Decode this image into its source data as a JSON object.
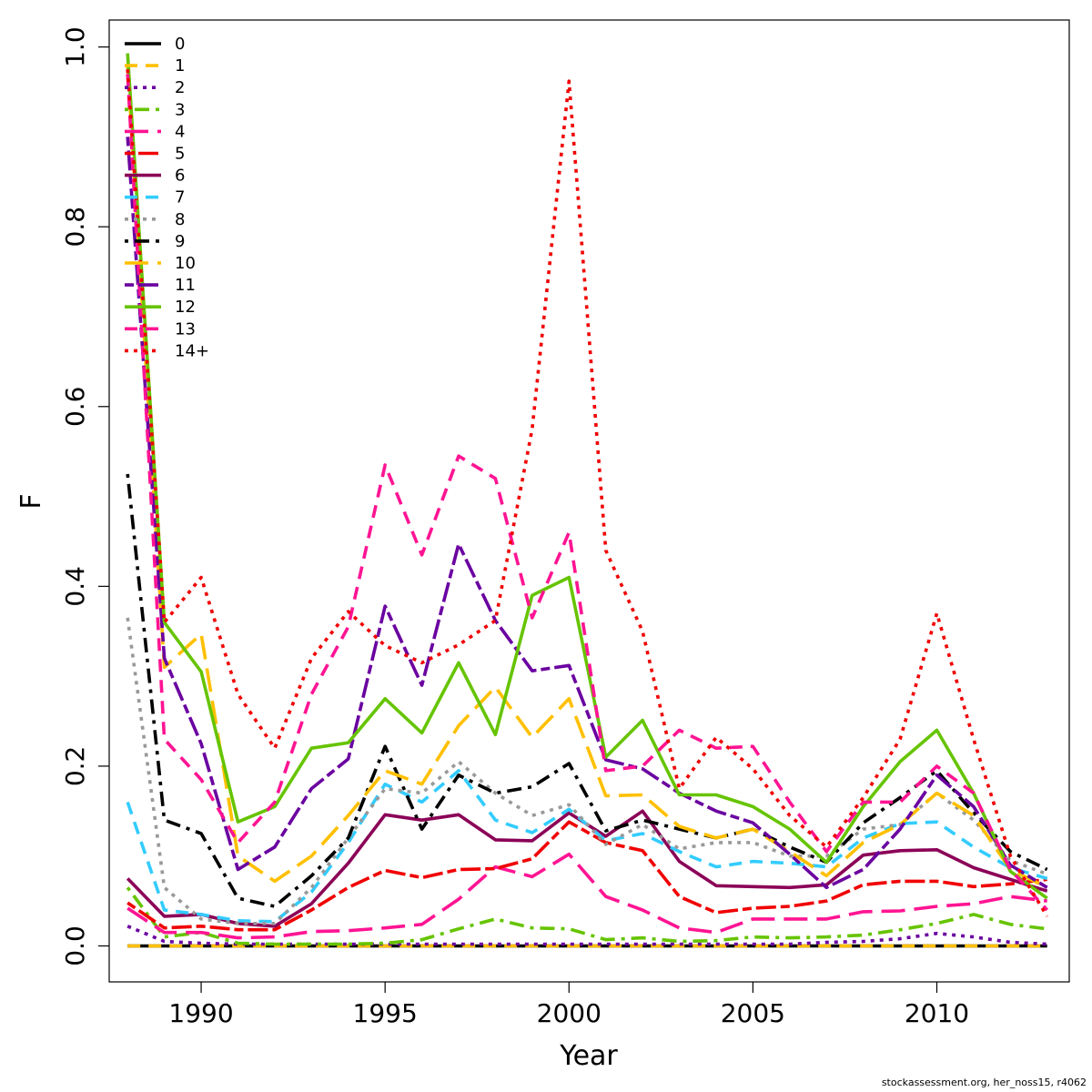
{
  "chart_data": {
    "type": "line",
    "xlabel": "Year",
    "ylabel": "F",
    "xlim": [
      1987.5,
      2013.6
    ],
    "ylim": [
      -0.04,
      1.03
    ],
    "x_ticks": [
      1990,
      1995,
      2000,
      2005,
      2010
    ],
    "y_ticks": [
      0.0,
      0.2,
      0.4,
      0.6,
      0.8,
      1.0
    ],
    "y_tick_labels": [
      "0.0",
      "0.2",
      "0.4",
      "0.6",
      "0.8",
      "1.0"
    ],
    "grid": false,
    "legend_position": "top-left",
    "x": [
      1988,
      1989,
      1990,
      1991,
      1992,
      1993,
      1994,
      1995,
      1996,
      1997,
      1998,
      1999,
      2000,
      2001,
      2002,
      2003,
      2004,
      2005,
      2006,
      2007,
      2008,
      2009,
      2010,
      2011,
      2012,
      2013
    ],
    "series": [
      {
        "name": "0",
        "color": "#000000",
        "dash": "solid",
        "values": [
          0,
          0,
          0,
          0,
          0,
          0,
          0,
          0,
          0,
          0,
          0,
          0,
          0,
          0,
          0,
          0,
          0,
          0,
          0,
          0,
          0,
          0,
          0,
          0,
          0,
          0
        ]
      },
      {
        "name": "1",
        "color": "#FFC000",
        "dash": "dashed",
        "values": [
          0,
          0,
          0,
          0,
          0,
          0,
          0,
          0,
          0,
          0,
          0,
          0,
          0,
          0,
          0,
          0,
          0,
          0,
          0,
          0,
          0,
          0,
          0,
          0,
          0,
          0
        ]
      },
      {
        "name": "2",
        "color": "#6A00A0",
        "dash": "dotted",
        "values": [
          0.022,
          0.005,
          0.003,
          0.002,
          0.002,
          0.002,
          0.002,
          0.002,
          0.002,
          0.002,
          0.002,
          0.002,
          0.002,
          0.002,
          0.002,
          0.002,
          0.002,
          0.002,
          0.002,
          0.004,
          0.005,
          0.008,
          0.014,
          0.01,
          0.004,
          0.002
        ]
      },
      {
        "name": "3",
        "color": "#66C400",
        "dash": "dotdash",
        "values": [
          0.065,
          0.01,
          0.015,
          0.003,
          0.002,
          0.002,
          0.002,
          0.003,
          0.007,
          0.019,
          0.03,
          0.02,
          0.019,
          0.007,
          0.009,
          0.005,
          0.006,
          0.01,
          0.009,
          0.01,
          0.012,
          0.018,
          0.025,
          0.035,
          0.024,
          0.019
        ]
      },
      {
        "name": "4",
        "color": "#FF1493",
        "dash": "longdash",
        "values": [
          0.042,
          0.015,
          0.015,
          0.009,
          0.01,
          0.016,
          0.017,
          0.02,
          0.024,
          0.052,
          0.088,
          0.077,
          0.102,
          0.055,
          0.04,
          0.02,
          0.015,
          0.03,
          0.03,
          0.03,
          0.038,
          0.039,
          0.044,
          0.047,
          0.055,
          0.05
        ]
      },
      {
        "name": "5",
        "color": "#F00000",
        "dash": "twodash",
        "values": [
          0.048,
          0.02,
          0.022,
          0.018,
          0.018,
          0.04,
          0.065,
          0.084,
          0.076,
          0.085,
          0.086,
          0.097,
          0.138,
          0.115,
          0.106,
          0.055,
          0.037,
          0.042,
          0.044,
          0.05,
          0.068,
          0.072,
          0.072,
          0.066,
          0.069,
          0.074
        ]
      },
      {
        "name": "6",
        "color": "#8B0057",
        "dash": "solid",
        "values": [
          0.075,
          0.033,
          0.035,
          0.025,
          0.022,
          0.047,
          0.092,
          0.146,
          0.14,
          0.146,
          0.118,
          0.117,
          0.148,
          0.122,
          0.15,
          0.094,
          0.067,
          0.066,
          0.065,
          0.068,
          0.101,
          0.106,
          0.107,
          0.087,
          0.074,
          0.061
        ]
      },
      {
        "name": "7",
        "color": "#33CCFF",
        "dash": "dashed",
        "values": [
          0.16,
          0.04,
          0.035,
          0.028,
          0.027,
          0.06,
          0.115,
          0.18,
          0.16,
          0.195,
          0.14,
          0.126,
          0.152,
          0.117,
          0.125,
          0.105,
          0.088,
          0.094,
          0.092,
          0.088,
          0.12,
          0.136,
          0.138,
          0.11,
          0.087,
          0.075
        ]
      },
      {
        "name": "8",
        "color": "#999999",
        "dash": "dotted",
        "values": [
          0.365,
          0.065,
          0.03,
          0.025,
          0.025,
          0.065,
          0.12,
          0.175,
          0.17,
          0.205,
          0.17,
          0.145,
          0.157,
          0.113,
          0.135,
          0.108,
          0.115,
          0.115,
          0.1,
          0.1,
          0.13,
          0.135,
          0.17,
          0.14,
          0.095,
          0.08
        ]
      },
      {
        "name": "9",
        "color": "#000000",
        "dash": "dotdash",
        "values": [
          0.525,
          0.14,
          0.125,
          0.053,
          0.044,
          0.078,
          0.12,
          0.222,
          0.13,
          0.19,
          0.17,
          0.177,
          0.203,
          0.128,
          0.14,
          0.13,
          0.12,
          0.13,
          0.11,
          0.093,
          0.137,
          0.165,
          0.195,
          0.148,
          0.105,
          0.085
        ]
      },
      {
        "name": "10",
        "color": "#FFC000",
        "dash": "longdash",
        "values": [
          0.98,
          0.31,
          0.347,
          0.1,
          0.072,
          0.1,
          0.145,
          0.195,
          0.18,
          0.245,
          0.288,
          0.232,
          0.275,
          0.167,
          0.168,
          0.133,
          0.12,
          0.13,
          0.105,
          0.078,
          0.115,
          0.135,
          0.17,
          0.145,
          0.085,
          0.065
        ]
      },
      {
        "name": "11",
        "color": "#6A00A0",
        "dash": "twodash",
        "values": [
          0.9,
          0.32,
          0.225,
          0.085,
          0.11,
          0.175,
          0.208,
          0.378,
          0.29,
          0.447,
          0.362,
          0.306,
          0.312,
          0.207,
          0.197,
          0.17,
          0.15,
          0.137,
          0.102,
          0.065,
          0.085,
          0.13,
          0.19,
          0.155,
          0.09,
          0.065
        ]
      },
      {
        "name": "12",
        "color": "#66C400",
        "dash": "solid",
        "values": [
          0.993,
          0.36,
          0.305,
          0.138,
          0.155,
          0.22,
          0.226,
          0.275,
          0.237,
          0.315,
          0.235,
          0.39,
          0.41,
          0.21,
          0.251,
          0.168,
          0.168,
          0.155,
          0.13,
          0.093,
          0.155,
          0.205,
          0.24,
          0.17,
          0.083,
          0.053
        ]
      },
      {
        "name": "13",
        "color": "#FF1493",
        "dash": "dashed",
        "values": [
          0.97,
          0.23,
          0.185,
          0.115,
          0.16,
          0.28,
          0.355,
          0.535,
          0.435,
          0.545,
          0.52,
          0.365,
          0.46,
          0.195,
          0.2,
          0.24,
          0.22,
          0.222,
          0.16,
          0.105,
          0.16,
          0.16,
          0.2,
          0.17,
          0.085,
          0.04
        ]
      },
      {
        "name": "14+",
        "color": "#F00000",
        "dash": "dotted",
        "values": [
          0.975,
          0.36,
          0.41,
          0.28,
          0.22,
          0.32,
          0.372,
          0.334,
          0.315,
          0.335,
          0.362,
          0.575,
          0.962,
          0.44,
          0.35,
          0.175,
          0.232,
          0.197,
          0.145,
          0.11,
          0.165,
          0.23,
          0.37,
          0.23,
          0.1,
          0.033
        ]
      }
    ]
  },
  "credit": "stockassessment.org, her_noss15, r4062"
}
